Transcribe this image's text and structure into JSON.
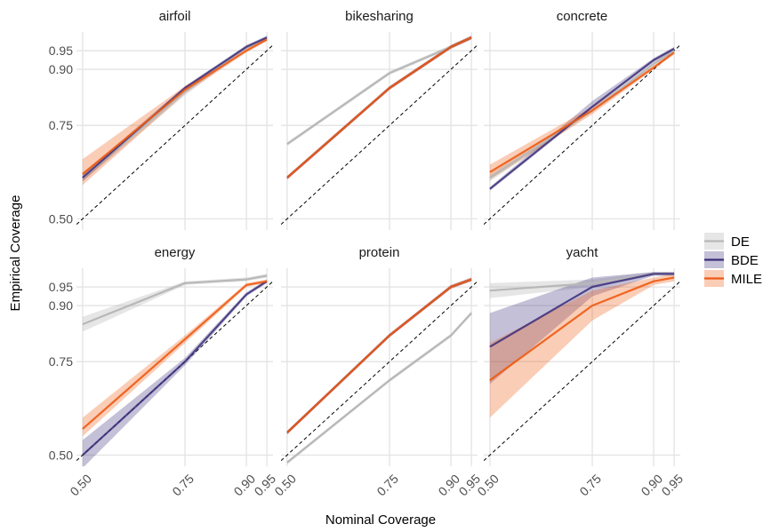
{
  "chart_data": {
    "type": "line",
    "xlabel": "Nominal Coverage",
    "ylabel": "Empirical Coverage",
    "xlim": [
      0.485,
      0.965
    ],
    "ylim": [
      0.47,
      1.0
    ],
    "x_ticks": [
      0.5,
      0.75,
      0.9,
      0.95
    ],
    "x_tick_labels": [
      "0.50",
      "0.75",
      "0.90",
      "0.95"
    ],
    "y_ticks": [
      0.5,
      0.75,
      0.9,
      0.95
    ],
    "y_tick_labels": [
      "0.50",
      "0.75",
      "0.90",
      "0.95"
    ],
    "grid": true,
    "reference_line": "y = x (dashed)",
    "legend": {
      "placement": "right",
      "entries": [
        {
          "name": "DE",
          "color": "#b8b8b8"
        },
        {
          "name": "BDE",
          "color": "#3b2d7a"
        },
        {
          "name": "MILE",
          "color": "#ee5a12"
        }
      ]
    },
    "x": [
      0.5,
      0.75,
      0.9,
      0.95
    ],
    "panels": [
      {
        "title": "airfoil",
        "series": [
          {
            "name": "DE",
            "values": [
              0.61,
              0.84,
              0.96,
              0.98
            ],
            "lower": [
              0.6,
              0.83,
              0.955,
              0.975
            ],
            "upper": [
              0.62,
              0.845,
              0.965,
              0.985
            ]
          },
          {
            "name": "BDE",
            "values": [
              0.61,
              0.85,
              0.96,
              0.985
            ],
            "lower": [
              0.6,
              0.845,
              0.955,
              0.98
            ],
            "upper": [
              0.62,
              0.855,
              0.965,
              0.99
            ]
          },
          {
            "name": "MILE",
            "values": [
              0.62,
              0.845,
              0.95,
              0.98
            ],
            "lower": [
              0.59,
              0.835,
              0.945,
              0.975
            ],
            "upper": [
              0.66,
              0.855,
              0.955,
              0.985
            ]
          }
        ]
      },
      {
        "title": "bikesharing",
        "series": [
          {
            "name": "DE",
            "values": [
              0.7,
              0.89,
              0.96,
              0.985
            ],
            "lower": [
              0.695,
              0.885,
              0.955,
              0.98
            ],
            "upper": [
              0.705,
              0.895,
              0.965,
              0.99
            ]
          },
          {
            "name": "BDE",
            "values": [
              0.61,
              0.85,
              0.96,
              0.985
            ],
            "lower": [
              0.605,
              0.845,
              0.955,
              0.98
            ],
            "upper": [
              0.615,
              0.855,
              0.965,
              0.99
            ]
          },
          {
            "name": "MILE",
            "values": [
              0.61,
              0.85,
              0.96,
              0.985
            ],
            "lower": [
              0.605,
              0.845,
              0.955,
              0.98
            ],
            "upper": [
              0.615,
              0.855,
              0.965,
              0.99
            ]
          }
        ]
      },
      {
        "title": "concrete",
        "series": [
          {
            "name": "DE",
            "values": [
              0.61,
              0.79,
              0.915,
              0.95
            ],
            "lower": [
              0.6,
              0.785,
              0.91,
              0.945
            ],
            "upper": [
              0.62,
              0.795,
              0.92,
              0.955
            ]
          },
          {
            "name": "BDE",
            "values": [
              0.58,
              0.8,
              0.925,
              0.955
            ],
            "lower": [
              0.575,
              0.795,
              0.92,
              0.95
            ],
            "upper": [
              0.585,
              0.815,
              0.93,
              0.96
            ]
          },
          {
            "name": "MILE",
            "values": [
              0.625,
              0.79,
              0.905,
              0.945
            ],
            "lower": [
              0.605,
              0.78,
              0.9,
              0.94
            ],
            "upper": [
              0.645,
              0.8,
              0.91,
              0.95
            ]
          }
        ]
      },
      {
        "title": "energy",
        "series": [
          {
            "name": "DE",
            "values": [
              0.85,
              0.96,
              0.97,
              0.98
            ],
            "lower": [
              0.83,
              0.955,
              0.965,
              0.975
            ],
            "upper": [
              0.87,
              0.965,
              0.975,
              0.985
            ]
          },
          {
            "name": "BDE",
            "values": [
              0.5,
              0.75,
              0.93,
              0.965
            ],
            "lower": [
              0.465,
              0.74,
              0.925,
              0.96
            ],
            "upper": [
              0.54,
              0.76,
              0.935,
              0.97
            ]
          },
          {
            "name": "MILE",
            "values": [
              0.57,
              0.81,
              0.955,
              0.965
            ],
            "lower": [
              0.55,
              0.8,
              0.95,
              0.96
            ],
            "upper": [
              0.6,
              0.82,
              0.96,
              0.97
            ]
          }
        ]
      },
      {
        "title": "protein",
        "series": [
          {
            "name": "DE",
            "values": [
              0.48,
              0.7,
              0.82,
              0.88
            ],
            "lower": [
              0.475,
              0.695,
              0.815,
              0.875
            ],
            "upper": [
              0.485,
              0.705,
              0.825,
              0.885
            ]
          },
          {
            "name": "BDE",
            "values": [
              0.56,
              0.82,
              0.95,
              0.97
            ],
            "lower": [
              0.555,
              0.815,
              0.945,
              0.965
            ],
            "upper": [
              0.565,
              0.825,
              0.955,
              0.975
            ]
          },
          {
            "name": "MILE",
            "values": [
              0.56,
              0.82,
              0.95,
              0.97
            ],
            "lower": [
              0.555,
              0.815,
              0.945,
              0.965
            ],
            "upper": [
              0.565,
              0.825,
              0.955,
              0.975
            ]
          }
        ]
      },
      {
        "title": "yacht",
        "series": [
          {
            "name": "DE",
            "values": [
              0.94,
              0.96,
              0.985,
              0.985
            ],
            "lower": [
              0.92,
              0.95,
              0.98,
              0.98
            ],
            "upper": [
              0.96,
              0.97,
              0.99,
              0.99
            ]
          },
          {
            "name": "BDE",
            "values": [
              0.79,
              0.95,
              0.985,
              0.985
            ],
            "lower": [
              0.69,
              0.925,
              0.98,
              0.98
            ],
            "upper": [
              0.88,
              0.975,
              0.99,
              0.99
            ]
          },
          {
            "name": "MILE",
            "values": [
              0.7,
              0.9,
              0.965,
              0.975
            ],
            "lower": [
              0.6,
              0.86,
              0.955,
              0.965
            ],
            "upper": [
              0.8,
              0.94,
              0.975,
              0.985
            ]
          }
        ]
      }
    ]
  }
}
